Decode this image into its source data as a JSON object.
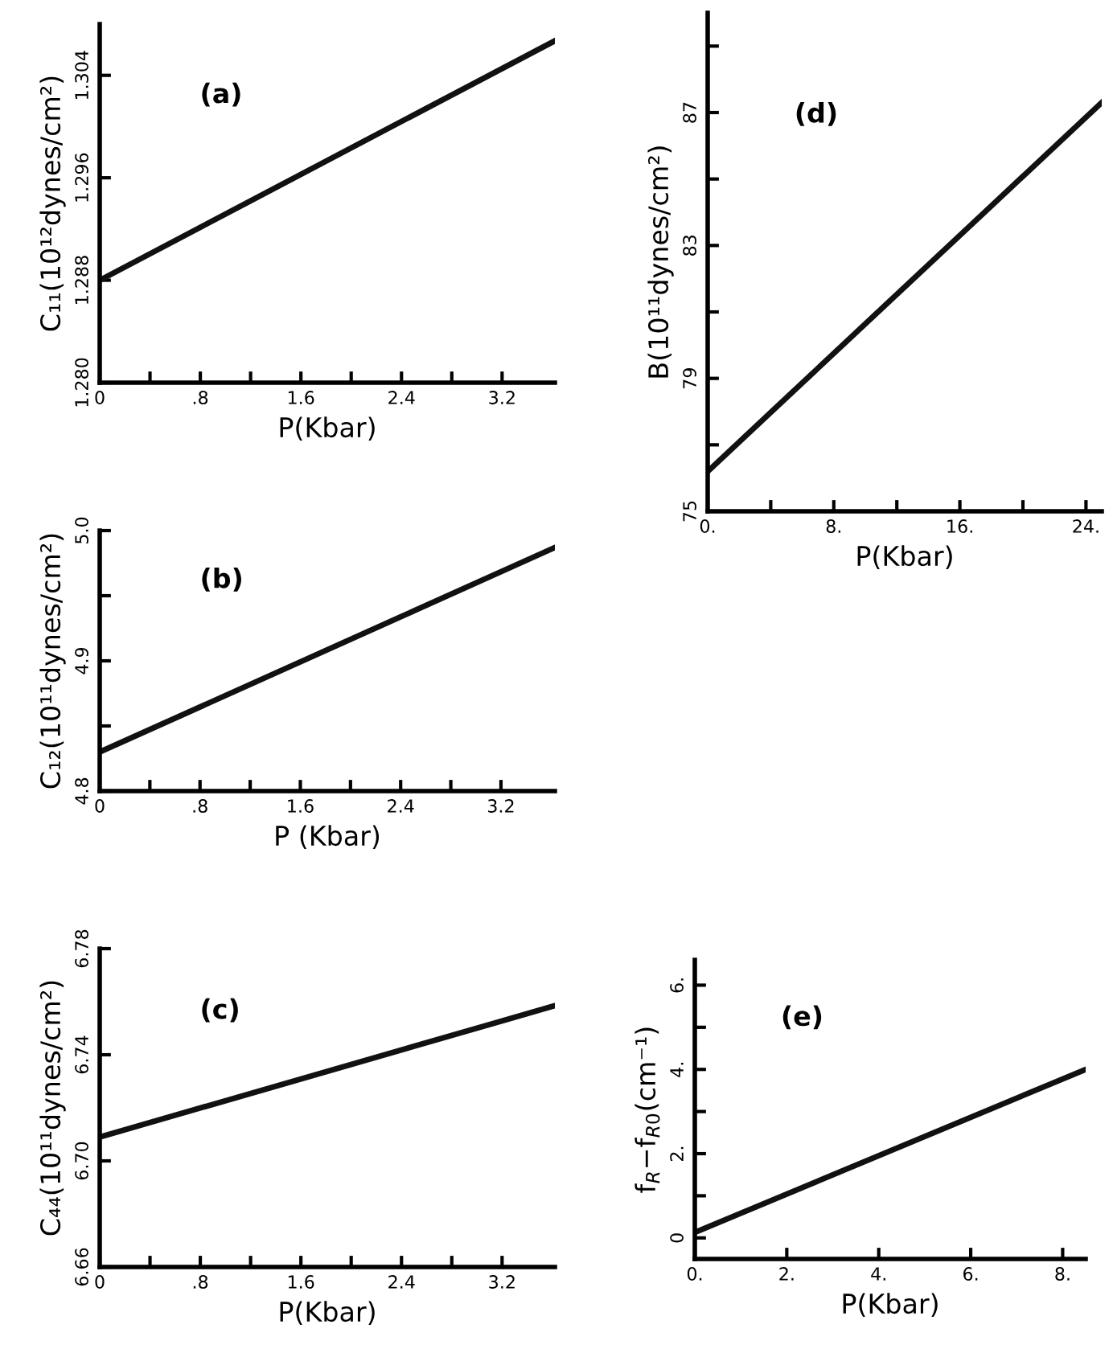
{
  "chart_data": [
    {
      "type": "line",
      "annotations": [
        "(a)"
      ],
      "xlabel": "P(Kbar)",
      "ylabel": "C₁₁(10¹²dynes/cm²)",
      "x": [
        0,
        3.62
      ],
      "series": [
        {
          "color": "#111111",
          "values": [
            1.288,
            1.3067
          ]
        }
      ],
      "xlim": [
        0,
        3.62
      ],
      "ylim": [
        1.28,
        1.308
      ],
      "xticks": [
        0,
        {
          "value": 0.4,
          "label": null
        },
        {
          "value": 0.8,
          "label": ".8"
        },
        {
          "value": 1.2,
          "label": null
        },
        1.6,
        {
          "value": 2.0,
          "label": null
        },
        2.4,
        {
          "value": 2.8,
          "label": null
        },
        3.2
      ],
      "yticks": [
        {
          "value": 1.28,
          "label": "1.280"
        },
        1.288,
        1.296,
        1.304
      ],
      "grid": false,
      "line_style": "solid",
      "marker": "none"
    },
    {
      "type": "line",
      "annotations": [
        "(b)"
      ],
      "xlabel": "P (Kbar)",
      "ylabel": "C₁₂(10¹¹dynes/cm²)",
      "x": [
        0,
        3.63
      ],
      "series": [
        {
          "color": "#111111",
          "values": [
            4.83,
            4.987
          ]
        }
      ],
      "xlim": [
        0,
        3.63
      ],
      "ylim": [
        4.8,
        5.0
      ],
      "xticks": [
        0,
        {
          "value": 0.4,
          "label": null
        },
        {
          "value": 0.8,
          "label": ".8"
        },
        {
          "value": 1.2,
          "label": null
        },
        1.6,
        {
          "value": 2.0,
          "label": null
        },
        2.4,
        {
          "value": 2.8,
          "label": null
        },
        3.2
      ],
      "yticks": [
        4.8,
        {
          "value": 4.85,
          "label": null
        },
        4.9,
        {
          "value": 4.95,
          "label": null
        },
        {
          "value": 5.0,
          "label": "5.0"
        }
      ],
      "grid": false,
      "line_style": "solid",
      "marker": "none"
    },
    {
      "type": "line",
      "annotations": [
        "(c)"
      ],
      "xlabel": "P(Kbar)",
      "ylabel": "C₄₄(10¹¹dynes/cm²)",
      "x": [
        0,
        3.62
      ],
      "series": [
        {
          "color": "#111111",
          "values": [
            6.709,
            6.7585
          ]
        }
      ],
      "xlim": [
        0,
        3.62
      ],
      "ylim": [
        6.66,
        6.78
      ],
      "xticks": [
        0,
        {
          "value": 0.4,
          "label": null
        },
        {
          "value": 0.8,
          "label": ".8"
        },
        {
          "value": 1.2,
          "label": null
        },
        1.6,
        {
          "value": 2.0,
          "label": null
        },
        2.4,
        {
          "value": 2.8,
          "label": null
        },
        3.2
      ],
      "yticks": [
        6.66,
        {
          "value": 6.7,
          "label": "6.70"
        },
        6.74,
        {
          "value": 6.78,
          "label": "6.78"
        }
      ],
      "grid": false,
      "line_style": "solid",
      "marker": "none"
    },
    {
      "type": "line",
      "annotations": [
        "(d)"
      ],
      "xlabel": "P(Kbar)",
      "ylabel": "B(10¹¹dynes/cm²)",
      "x": [
        0,
        25
      ],
      "series": [
        {
          "color": "#111111",
          "values": [
            76.2,
            87.3
          ]
        }
      ],
      "xlim": [
        0,
        25
      ],
      "ylim": [
        75,
        90
      ],
      "xticks": [
        {
          "value": 0,
          "label": "0."
        },
        {
          "value": 4,
          "label": null
        },
        {
          "value": 8,
          "label": "8."
        },
        {
          "value": 12,
          "label": null
        },
        {
          "value": 16,
          "label": "16."
        },
        {
          "value": 20,
          "label": null
        },
        {
          "value": 24,
          "label": "24."
        }
      ],
      "yticks": [
        75,
        {
          "value": 77,
          "label": null
        },
        79,
        {
          "value": 81,
          "label": null
        },
        83,
        {
          "value": 85,
          "label": null
        },
        87,
        {
          "value": 89,
          "label": null
        }
      ],
      "grid": false,
      "line_style": "solid",
      "marker": "none"
    },
    {
      "type": "line",
      "annotations": [
        "(e)"
      ],
      "xlabel": "P(Kbar)",
      "ylabel": "f$_{R}$−f$_{R0}$(cm⁻¹)",
      "x": [
        0,
        8.5
      ],
      "series": [
        {
          "color": "#111111",
          "values": [
            0.13,
            4.0
          ]
        }
      ],
      "xlim": [
        0,
        8.5
      ],
      "ylim": [
        -0.5,
        6.6
      ],
      "xticks": [
        {
          "value": 0,
          "label": "0."
        },
        {
          "value": 2,
          "label": "2."
        },
        {
          "value": 4,
          "label": "4."
        },
        {
          "value": 6,
          "label": "6."
        },
        {
          "value": 8,
          "label": "8."
        }
      ],
      "yticks": [
        0,
        {
          "value": 1,
          "label": null
        },
        {
          "value": 2,
          "label": "2."
        },
        {
          "value": 3,
          "label": null
        },
        {
          "value": 4,
          "label": "4."
        },
        {
          "value": 5,
          "label": null
        },
        {
          "value": 6,
          "label": "6."
        }
      ],
      "grid": false,
      "line_style": "solid",
      "marker": "none"
    }
  ]
}
